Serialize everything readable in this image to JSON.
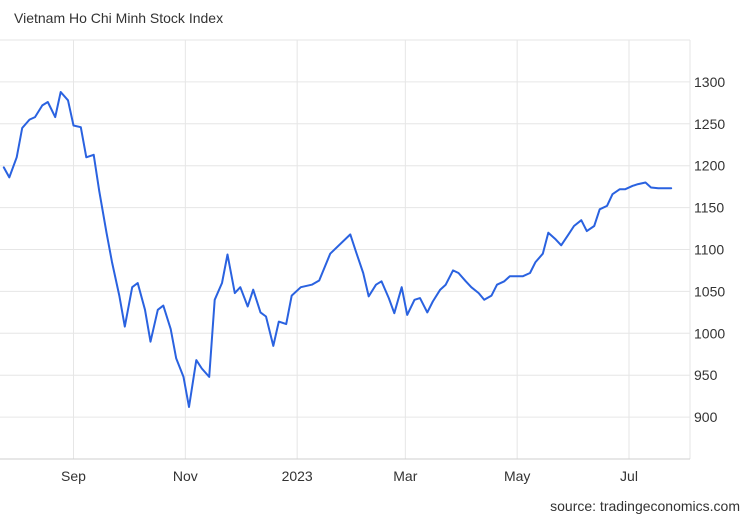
{
  "title": "Vietnam Ho Chi Minh Stock Index",
  "source": "source: tradingeconomics.com",
  "colors": {
    "line": "#2a62e0",
    "grid": "#e6e6e6",
    "text": "#333333"
  },
  "chart_data": {
    "type": "line",
    "title": "Vietnam Ho Chi Minh Stock Index",
    "x_ticks": [
      "Sep",
      "Nov",
      "2023",
      "Mar",
      "May",
      "Jul"
    ],
    "y_ticks": [
      900,
      950,
      1000,
      1050,
      1100,
      1150,
      1200,
      1250,
      1300
    ],
    "ylim": [
      850,
      1350
    ],
    "xlim": [
      "2022-07-24",
      "2023-07-31"
    ],
    "grid": true,
    "y_axis_side": "right",
    "series": [
      {
        "x": [
          "2022-07-25",
          "2022-07-28",
          "2022-08-01",
          "2022-08-04",
          "2022-08-08",
          "2022-08-11",
          "2022-08-15",
          "2022-08-18",
          "2022-08-22",
          "2022-08-25",
          "2022-08-29",
          "2022-09-01",
          "2022-09-05",
          "2022-09-08",
          "2022-09-12",
          "2022-09-15",
          "2022-09-19",
          "2022-09-22",
          "2022-09-26",
          "2022-09-29",
          "2022-10-03",
          "2022-10-06",
          "2022-10-10",
          "2022-10-13",
          "2022-10-17",
          "2022-10-20",
          "2022-10-24",
          "2022-10-27",
          "2022-10-31",
          "2022-11-03",
          "2022-11-07",
          "2022-11-10",
          "2022-11-14",
          "2022-11-17",
          "2022-11-21",
          "2022-11-24",
          "2022-11-28",
          "2022-12-01",
          "2022-12-05",
          "2022-12-08",
          "2022-12-12",
          "2022-12-15",
          "2022-12-19",
          "2022-12-22",
          "2022-12-26",
          "2022-12-29",
          "2023-01-03",
          "2023-01-09",
          "2023-01-13",
          "2023-01-19",
          "2023-01-30",
          "2023-02-02",
          "2023-02-06",
          "2023-02-09",
          "2023-02-13",
          "2023-02-16",
          "2023-02-20",
          "2023-02-23",
          "2023-02-27",
          "2023-03-02",
          "2023-03-06",
          "2023-03-09",
          "2023-03-13",
          "2023-03-16",
          "2023-03-20",
          "2023-03-23",
          "2023-03-27",
          "2023-03-30",
          "2023-04-03",
          "2023-04-06",
          "2023-04-10",
          "2023-04-13",
          "2023-04-17",
          "2023-04-20",
          "2023-04-24",
          "2023-04-27",
          "2023-05-04",
          "2023-05-08",
          "2023-05-11",
          "2023-05-15",
          "2023-05-18",
          "2023-05-22",
          "2023-05-25",
          "2023-05-29",
          "2023-06-01",
          "2023-06-05",
          "2023-06-08",
          "2023-06-12",
          "2023-06-15",
          "2023-06-19",
          "2023-06-22",
          "2023-06-26",
          "2023-06-29",
          "2023-07-03",
          "2023-07-06",
          "2023-07-10",
          "2023-07-13",
          "2023-07-17",
          "2023-07-20",
          "2023-07-24"
        ],
        "y": [
          1198,
          1186,
          1210,
          1245,
          1255,
          1258,
          1272,
          1276,
          1258,
          1288,
          1278,
          1248,
          1246,
          1210,
          1213,
          1170,
          1120,
          1085,
          1045,
          1008,
          1055,
          1060,
          1028,
          990,
          1028,
          1033,
          1005,
          970,
          948,
          912,
          968,
          958,
          948,
          1040,
          1060,
          1094,
          1048,
          1055,
          1032,
          1052,
          1025,
          1020,
          985,
          1014,
          1011,
          1045,
          1055,
          1058,
          1063,
          1095,
          1118,
          1098,
          1072,
          1044,
          1058,
          1062,
          1042,
          1024,
          1055,
          1022,
          1040,
          1042,
          1025,
          1038,
          1052,
          1058,
          1075,
          1072,
          1062,
          1055,
          1048,
          1040,
          1045,
          1058,
          1062,
          1068,
          1068,
          1072,
          1085,
          1095,
          1120,
          1112,
          1105,
          1118,
          1128,
          1135,
          1122,
          1128,
          1148,
          1152,
          1166,
          1172,
          1172,
          1176,
          1178,
          1180,
          1174,
          1173,
          1173,
          1173
        ]
      }
    ]
  }
}
